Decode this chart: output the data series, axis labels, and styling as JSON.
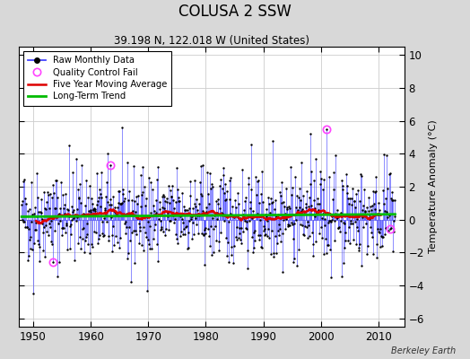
{
  "title": "COLUSA 2 SSW",
  "subtitle": "39.198 N, 122.018 W (United States)",
  "ylabel": "Temperature Anomaly (°C)",
  "watermark": "Berkeley Earth",
  "xlim": [
    1947.5,
    2014.5
  ],
  "ylim": [
    -6.5,
    10.5
  ],
  "yticks": [
    -6,
    -4,
    -2,
    0,
    2,
    4,
    6,
    8,
    10
  ],
  "xticks": [
    1950,
    1960,
    1970,
    1980,
    1990,
    2000,
    2010
  ],
  "fig_background": "#d8d8d8",
  "plot_background": "#ffffff",
  "raw_line_color": "#4444ff",
  "raw_dot_color": "#000000",
  "moving_avg_color": "#dd0000",
  "trend_color": "#00bb00",
  "qc_fail_color": "#ff44ff",
  "seed": 42,
  "n_years": 65,
  "start_year": 1948
}
